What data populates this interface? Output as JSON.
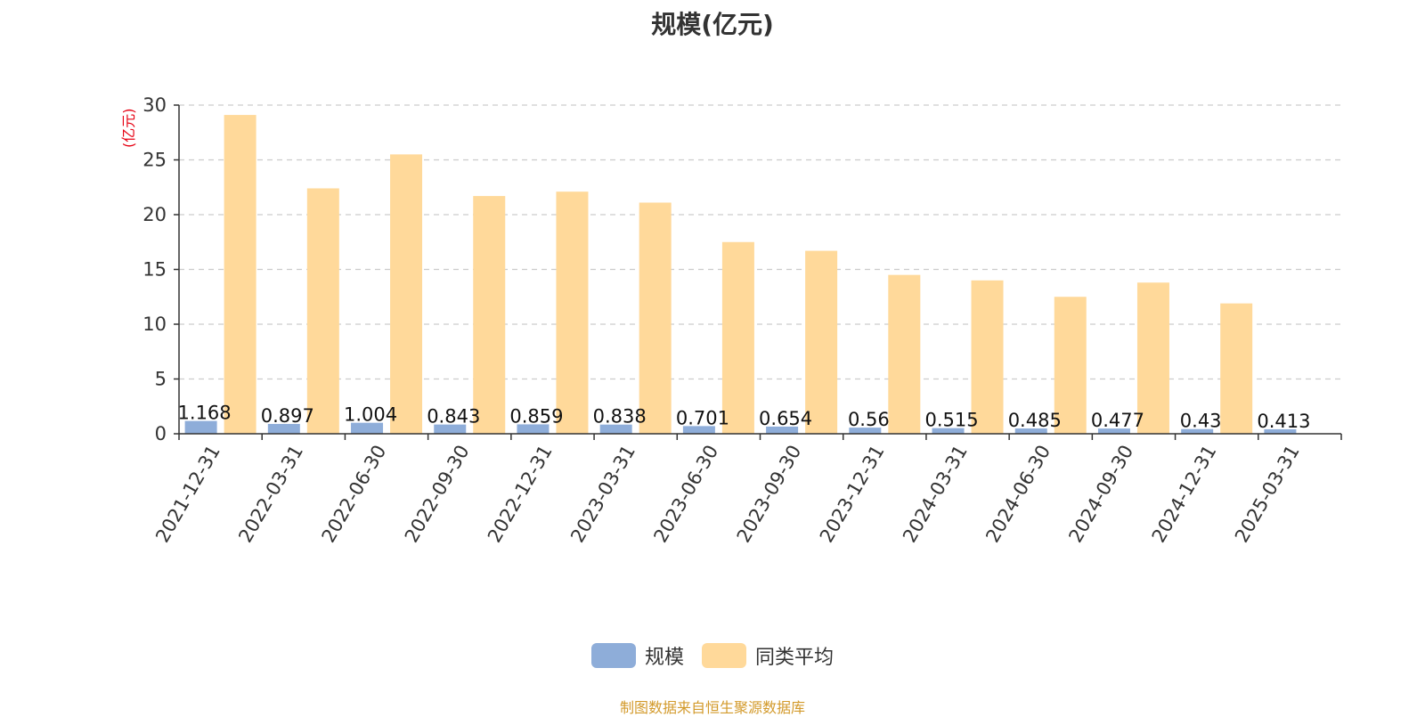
{
  "chart_data": {
    "type": "bar",
    "title": "规模(亿元)",
    "ylabel": "(亿元)",
    "xlabel": "",
    "ylim": [
      0,
      30
    ],
    "yticks": [
      0,
      5,
      10,
      15,
      20,
      25,
      30
    ],
    "grid": true,
    "legend_position": "bottom",
    "categories": [
      "2021-12-31",
      "2022-03-31",
      "2022-06-30",
      "2022-09-30",
      "2022-12-31",
      "2023-03-31",
      "2023-06-30",
      "2023-09-30",
      "2023-12-31",
      "2024-03-31",
      "2024-06-30",
      "2024-09-30",
      "2024-12-31",
      "2025-03-31"
    ],
    "series": [
      {
        "name": "规模",
        "color": "#8eadd9",
        "values": [
          1.168,
          0.897,
          1.004,
          0.843,
          0.859,
          0.838,
          0.701,
          0.654,
          0.56,
          0.515,
          0.485,
          0.477,
          0.43,
          0.413
        ],
        "labels": [
          "1.168",
          "0.897",
          "1.004",
          "0.843",
          "0.859",
          "0.838",
          "0.701",
          "0.654",
          "0.56",
          "0.515",
          "0.485",
          "0.477",
          "0.43",
          "0.413"
        ]
      },
      {
        "name": "同类平均",
        "color": "#ffd99a",
        "values": [
          29.1,
          22.4,
          25.5,
          21.7,
          22.1,
          21.1,
          17.5,
          16.7,
          14.5,
          14.0,
          12.5,
          13.8,
          11.9,
          null
        ]
      }
    ]
  },
  "source_note": "制图数据来自恒生聚源数据库"
}
